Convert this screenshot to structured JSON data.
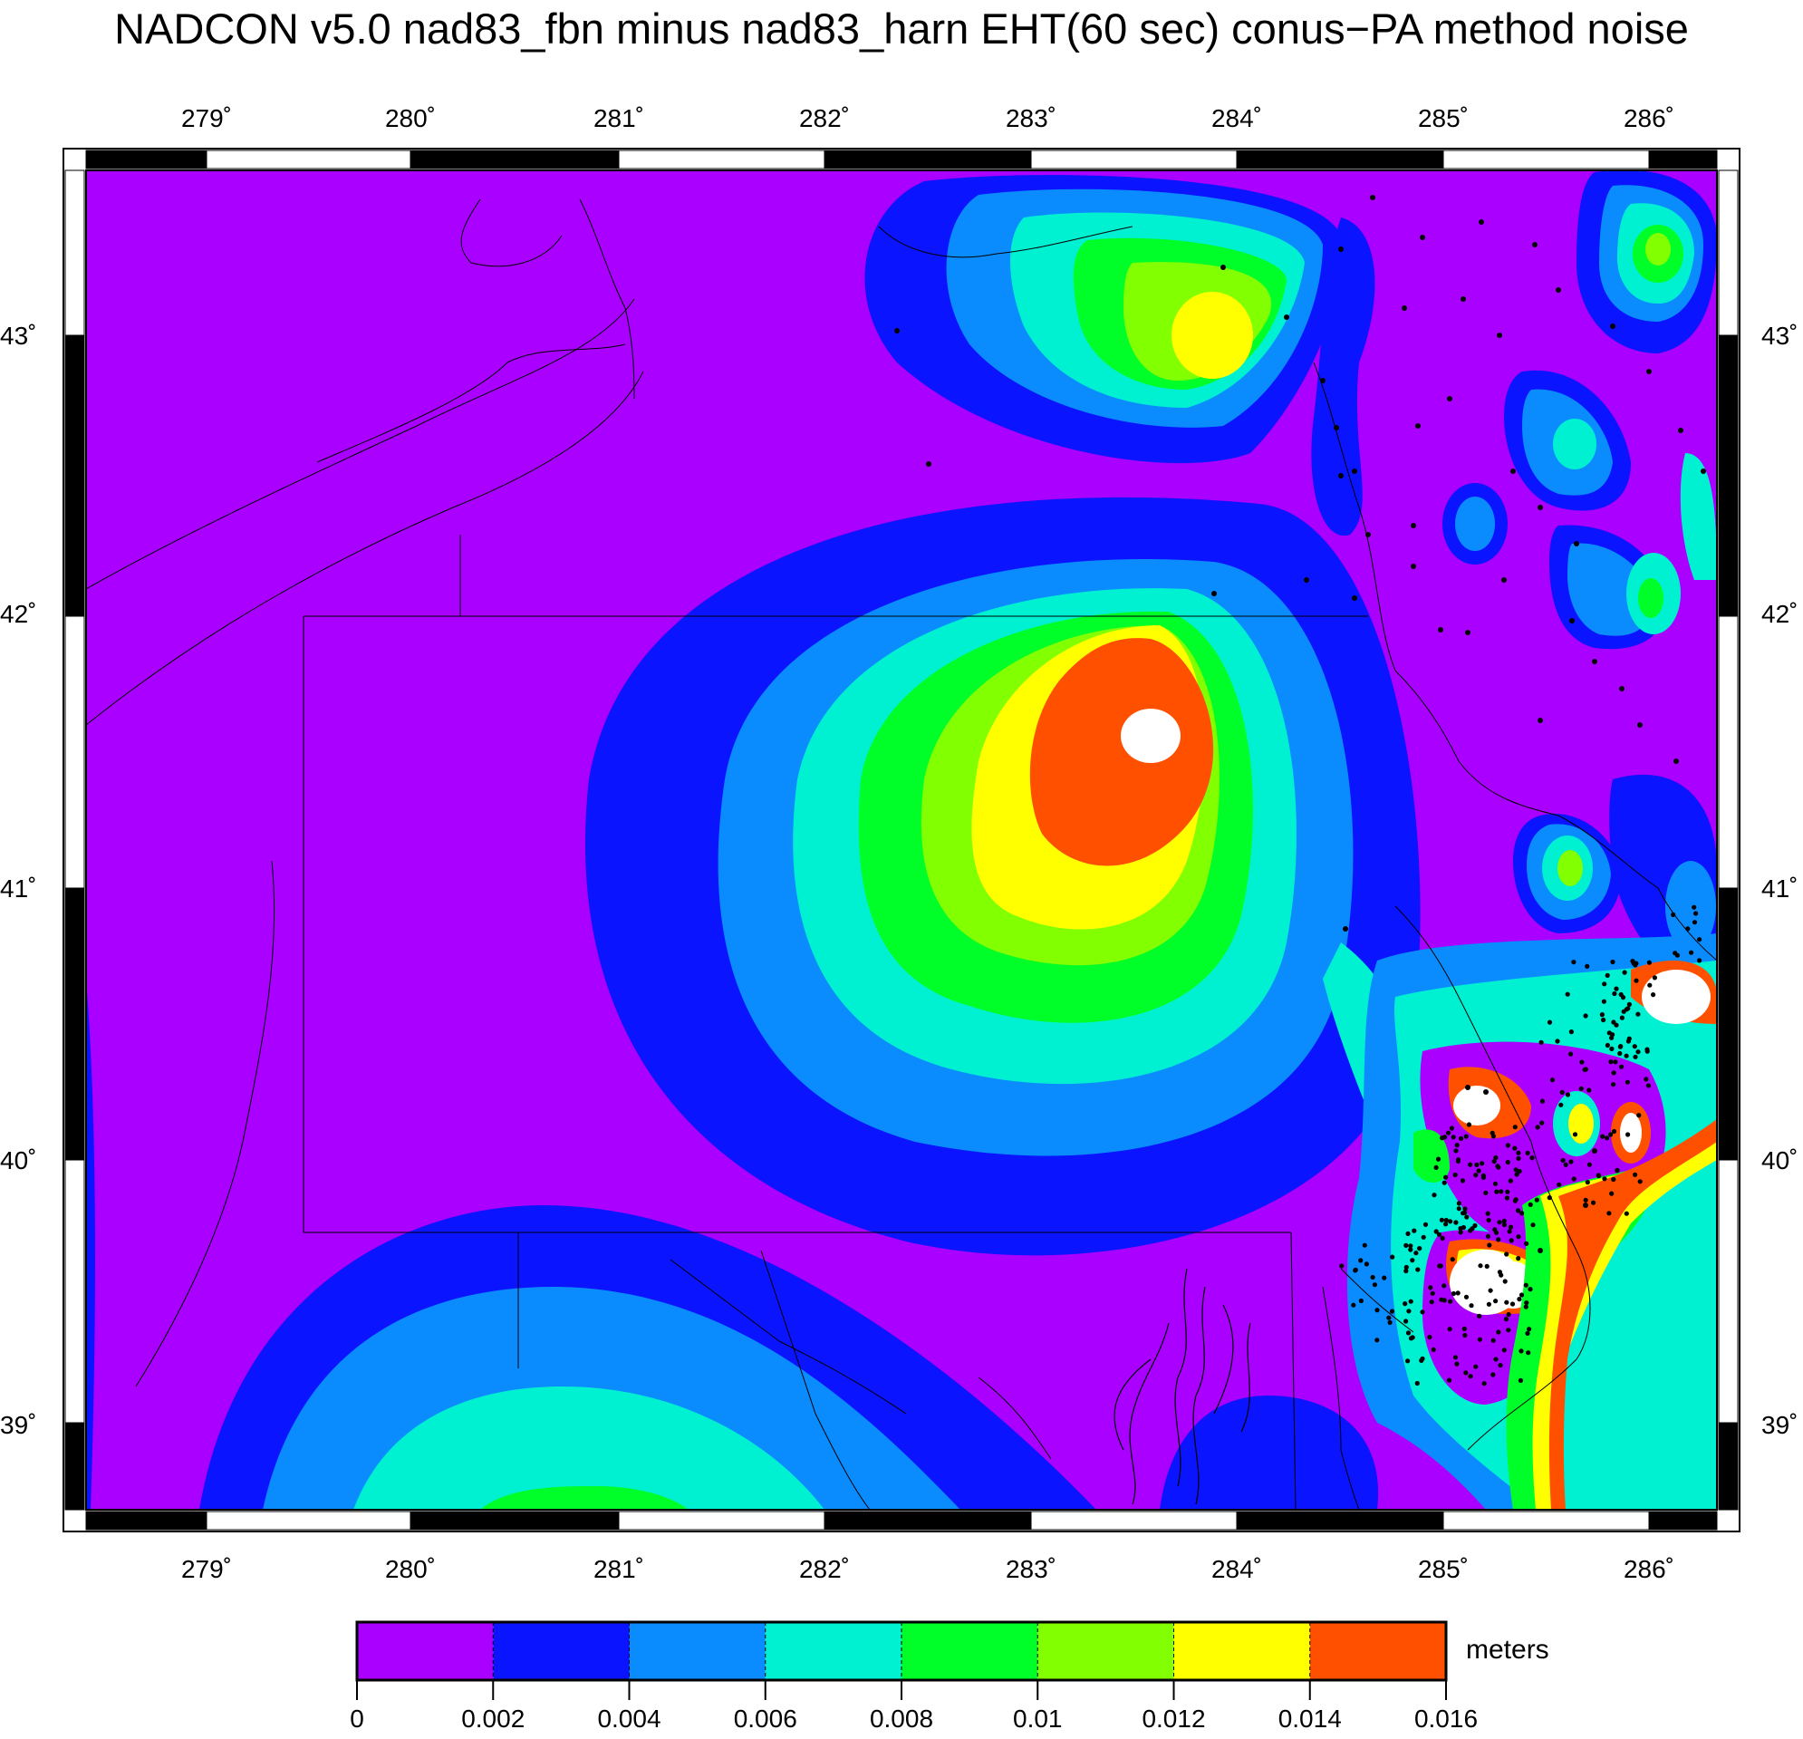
{
  "title": "NADCON v5.0 nad83_fbn minus nad83_harn EHT(60 sec) conus−PA method noise",
  "degree_symbol": "˚",
  "map": {
    "lon_ticks": [
      "279",
      "280",
      "281",
      "282",
      "283",
      "284",
      "285",
      "286"
    ],
    "lat_ticks": [
      "43",
      "42",
      "41",
      "40",
      "39"
    ],
    "lon_range": [
      278.4,
      286.45
    ],
    "lat_range": [
      38.7,
      43.55
    ],
    "colors": {
      "background": "#aa00ff",
      "levels": [
        "#aa00ff",
        "#0a14ff",
        "#0a8cff",
        "#00f0d2",
        "#00ff28",
        "#82ff00",
        "#ffff00",
        "#ff5000",
        "#ffffff"
      ]
    },
    "plume_center": [
      283.6,
      41.55
    ],
    "station_dots": "black"
  },
  "colorbar": {
    "unit": "meters",
    "ticks": [
      "0",
      "0.002",
      "0.004",
      "0.006",
      "0.008",
      "0.01",
      "0.012",
      "0.014",
      "0.016"
    ],
    "colors": [
      "#aa00ff",
      "#0a14ff",
      "#0a8cff",
      "#00f0d2",
      "#00ff28",
      "#82ff00",
      "#ffff00",
      "#ff5000"
    ]
  }
}
